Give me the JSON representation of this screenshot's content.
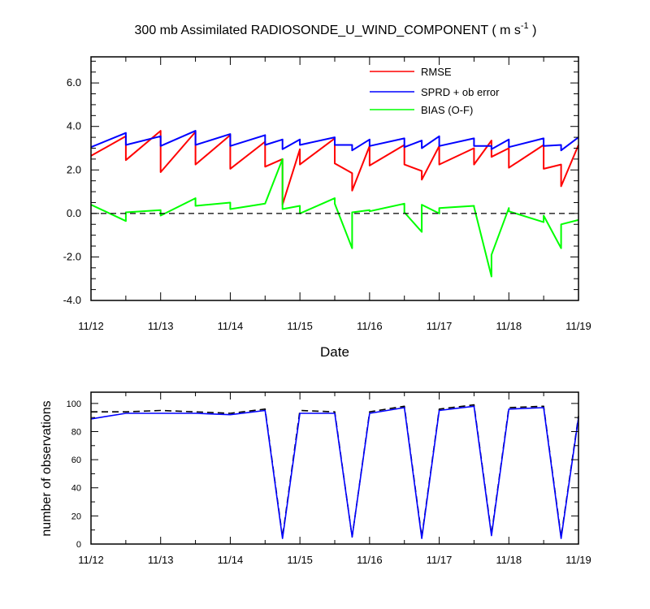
{
  "chart_data": [
    {
      "type": "line",
      "title": "300 mb Assimilated RADIOSONDE_U_WIND_COMPONENT ( m s",
      "title_sup": "-1",
      "title_end": " )",
      "xlabel": "Date",
      "ylabel": "",
      "xlim": [
        0,
        7
      ],
      "ylim": [
        -4,
        7.2
      ],
      "x_ticks": [
        0,
        1,
        2,
        3,
        4,
        5,
        6,
        7
      ],
      "x_tick_labels": [
        "11/12",
        "11/13",
        "11/14",
        "11/15",
        "11/16",
        "11/17",
        "11/18",
        "11/19"
      ],
      "y_ticks": [
        -4,
        -2,
        0,
        2,
        4,
        6
      ],
      "y_tick_labels": [
        "-4.0",
        "-2.0",
        "0.0",
        "2.0",
        "4.0",
        "6.0"
      ],
      "zero_line": true,
      "legend_position": "top-right",
      "series": [
        {
          "name": "RMSE",
          "color": "#ff0000",
          "x": [
            0,
            0.5,
            0.5,
            1,
            1,
            1.5,
            1.5,
            2,
            2,
            2.5,
            2.5,
            2.75,
            2.75,
            3,
            3,
            3.5,
            3.5,
            3.75,
            3.75,
            4,
            4,
            4.5,
            4.5,
            4.75,
            4.75,
            5,
            5,
            5.5,
            5.5,
            5.75,
            5.75,
            6,
            6,
            6.5,
            6.5,
            6.75,
            6.75,
            7
          ],
          "values": [
            2.65,
            3.55,
            2.45,
            3.8,
            1.9,
            3.75,
            2.25,
            3.6,
            2.05,
            3.3,
            2.15,
            2.5,
            0.4,
            2.95,
            2.25,
            3.45,
            2.3,
            1.85,
            1.05,
            3.1,
            2.2,
            3.15,
            2.25,
            1.95,
            1.55,
            3.1,
            2.25,
            3.0,
            2.25,
            3.35,
            2.6,
            3.0,
            2.1,
            3.15,
            2.05,
            2.25,
            1.25,
            3.15
          ]
        },
        {
          "name": "SPRD + ob error",
          "color": "#0000ff",
          "x": [
            0,
            0.5,
            0.5,
            1,
            1,
            1.5,
            1.5,
            2,
            2,
            2.5,
            2.5,
            2.75,
            2.75,
            3,
            3,
            3.5,
            3.5,
            3.75,
            3.75,
            4,
            4,
            4.5,
            4.5,
            4.75,
            4.75,
            5,
            5,
            5.5,
            5.5,
            5.75,
            5.75,
            6,
            6,
            6.5,
            6.5,
            6.75,
            6.75,
            7
          ],
          "values": [
            3.05,
            3.7,
            3.15,
            3.55,
            3.1,
            3.8,
            3.15,
            3.65,
            3.1,
            3.6,
            3.15,
            3.4,
            2.95,
            3.4,
            3.15,
            3.5,
            3.15,
            3.15,
            2.9,
            3.4,
            3.1,
            3.45,
            3.05,
            3.35,
            3.0,
            3.55,
            3.1,
            3.45,
            3.1,
            3.1,
            2.95,
            3.4,
            3.05,
            3.45,
            3.1,
            3.15,
            2.9,
            3.5
          ]
        },
        {
          "name": "BIAS (O-F)",
          "color": "#00ff00",
          "x": [
            0,
            0.5,
            0.5,
            1,
            1,
            1.5,
            1.5,
            2,
            2,
            2.5,
            2.5,
            2.75,
            2.75,
            3,
            3,
            3.5,
            3.5,
            3.75,
            3.75,
            4,
            4,
            4.5,
            4.5,
            4.75,
            4.75,
            5,
            5,
            5.5,
            5.5,
            5.75,
            5.75,
            6,
            6,
            6.5,
            6.5,
            6.75,
            6.75,
            7
          ],
          "values": [
            0.4,
            -0.35,
            0.05,
            0.15,
            -0.1,
            0.7,
            0.35,
            0.5,
            0.2,
            0.45,
            0.45,
            2.5,
            0.2,
            0.35,
            0.0,
            0.7,
            0.45,
            -1.6,
            0.05,
            0.15,
            0.1,
            0.45,
            0.05,
            -0.85,
            0.4,
            0.0,
            0.25,
            0.35,
            0.3,
            -2.9,
            -1.9,
            0.25,
            0.1,
            -0.4,
            -0.1,
            -1.6,
            -0.5,
            -0.3
          ]
        }
      ]
    },
    {
      "type": "line",
      "title": "",
      "xlabel": "",
      "ylabel": "number of observations",
      "xlim": [
        0,
        7
      ],
      "ylim": [
        0,
        108
      ],
      "x_ticks": [
        0,
        1,
        2,
        3,
        4,
        5,
        6,
        7
      ],
      "x_tick_labels": [
        "11/12",
        "11/13",
        "11/14",
        "11/15",
        "11/16",
        "11/17",
        "11/18",
        "11/19"
      ],
      "y_ticks": [
        0,
        20,
        40,
        60,
        80,
        100
      ],
      "y_tick_labels": [
        "0",
        "20",
        "40",
        "60",
        "80",
        "100"
      ],
      "series": [
        {
          "name": "dashed",
          "color": "#000000",
          "dashed": true,
          "x": [
            0,
            0.5,
            1,
            1.5,
            2,
            2.5,
            2.75,
            3,
            3.5,
            3.75,
            4,
            4.5,
            4.75,
            5,
            5.5,
            5.75,
            6,
            6.5,
            6.75,
            7
          ],
          "values": [
            94,
            94,
            95,
            94,
            93,
            96,
            5,
            95,
            94,
            5,
            94,
            98,
            5,
            96,
            99,
            7,
            97,
            98,
            5,
            91
          ]
        },
        {
          "name": "solid",
          "color": "#0000ff",
          "dashed": false,
          "x": [
            0,
            0.5,
            1,
            1.5,
            2,
            2.5,
            2.75,
            3,
            3.5,
            3.75,
            4,
            4.5,
            4.75,
            5,
            5.5,
            5.75,
            6,
            6.5,
            6.75,
            7
          ],
          "values": [
            89,
            93,
            93,
            93,
            92,
            95,
            4,
            93,
            93,
            5,
            93,
            97,
            4,
            95,
            98,
            6,
            96,
            97,
            4,
            90
          ]
        }
      ]
    }
  ]
}
